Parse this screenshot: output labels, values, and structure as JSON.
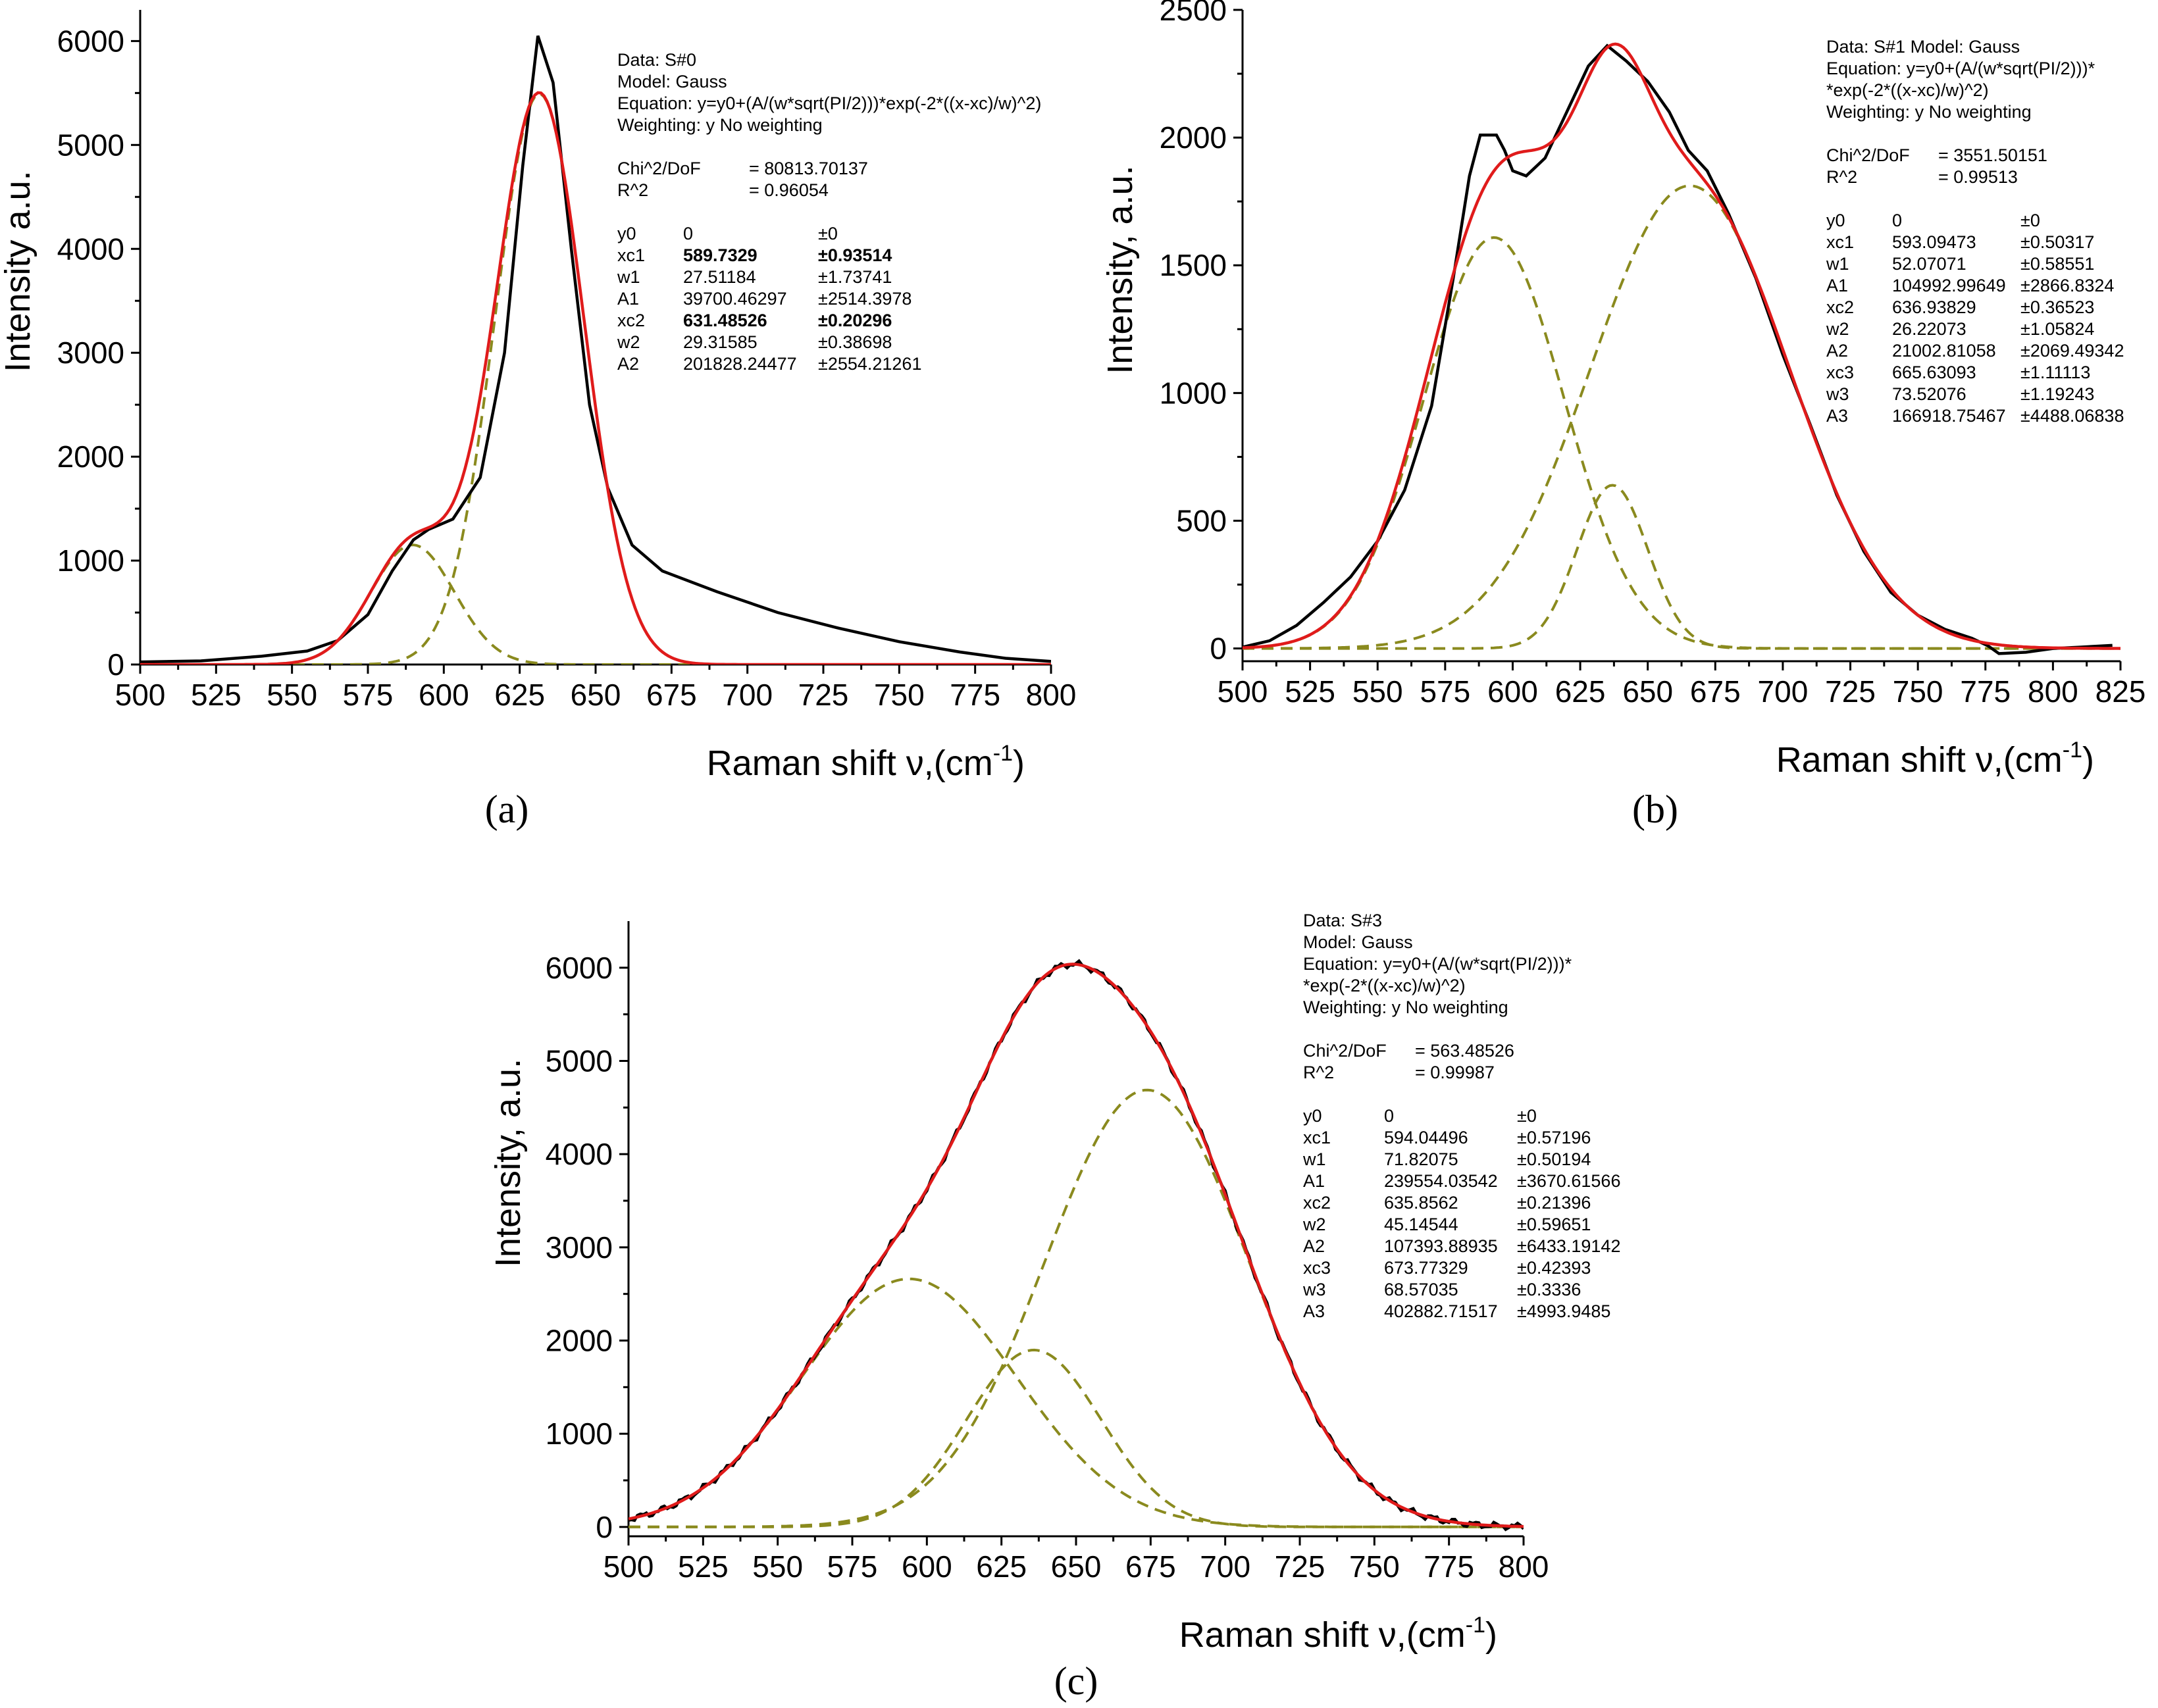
{
  "chart_data": [
    {
      "panel": "(a)",
      "type": "line",
      "xlabel": "Raman shift ν,(cm",
      "xlabel_sup": "-1",
      "xlabel_close": ")",
      "ylabel": "Intensity a.u.",
      "xlim": [
        500,
        800
      ],
      "ylim": [
        0,
        6300
      ],
      "xticks": [
        "500",
        "525",
        "550",
        "575",
        "600",
        "625",
        "650",
        "675",
        "700",
        "725",
        "750",
        "775",
        "800"
      ],
      "yticks": [
        "0",
        "1000",
        "2000",
        "3000",
        "4000",
        "5000",
        "6000"
      ],
      "fit": {
        "y0": 0,
        "peaks": [
          {
            "xc": 589.7329,
            "w": 27.51184,
            "A": 39700.46297
          },
          {
            "xc": 631.48526,
            "w": 29.31585,
            "A": 201828.24477
          }
        ]
      },
      "experimental": [
        [
          500,
          25
        ],
        [
          520,
          35
        ],
        [
          540,
          80
        ],
        [
          555,
          130
        ],
        [
          565,
          230
        ],
        [
          575,
          480
        ],
        [
          583,
          900
        ],
        [
          590,
          1200
        ],
        [
          595,
          1300
        ],
        [
          603,
          1400
        ],
        [
          612,
          1800
        ],
        [
          620,
          3000
        ],
        [
          626,
          4800
        ],
        [
          631,
          6050
        ],
        [
          636,
          5600
        ],
        [
          642,
          4000
        ],
        [
          648,
          2500
        ],
        [
          654,
          1700
        ],
        [
          662,
          1150
        ],
        [
          672,
          900
        ],
        [
          690,
          700
        ],
        [
          710,
          500
        ],
        [
          730,
          350
        ],
        [
          750,
          220
        ],
        [
          770,
          120
        ],
        [
          785,
          60
        ],
        [
          800,
          30
        ]
      ],
      "info": {
        "rows": [
          [
            "Data: S#0"
          ],
          [
            "Model: Gauss"
          ],
          [
            "Equation: y=y0+(A/(w*sqrt(PI/2)))*exp(-2*((x-xc)/w)^2)"
          ],
          [
            "Weighting:   y     No weighting"
          ],
          [
            ""
          ],
          [
            "Chi^2/DoF",
            "= 80813.70137"
          ],
          [
            "R^2",
            "=  0.96054"
          ],
          [
            ""
          ],
          [
            "y0",
            "0",
            "±0"
          ],
          [
            "xc1",
            "589.7329",
            "±0.93514"
          ],
          [
            "w1",
            "27.51184",
            "±1.73741"
          ],
          [
            "A1",
            "39700.46297",
            "±2514.3978"
          ],
          [
            "xc2",
            "631.48526",
            "±0.20296"
          ],
          [
            "w2",
            "29.31585",
            "±0.38698"
          ],
          [
            "A2",
            "201828.24477",
            "±2554.21261"
          ]
        ]
      }
    },
    {
      "panel": "(b)",
      "type": "line",
      "xlabel": "Raman shift ν,(cm",
      "xlabel_sup": "-1",
      "xlabel_close": ")",
      "ylabel": "Intensity, a.u.",
      "xlim": [
        500,
        825
      ],
      "ylim": [
        -50,
        2500
      ],
      "xticks": [
        "500",
        "525",
        "550",
        "575",
        "600",
        "625",
        "650",
        "675",
        "700",
        "725",
        "750",
        "775",
        "800",
        "825"
      ],
      "yticks": [
        "0",
        "500",
        "1000",
        "1500",
        "2000",
        "2500"
      ],
      "fit": {
        "y0": 0,
        "peaks": [
          {
            "xc": 593.09473,
            "w": 52.07071,
            "A": 104992.99649
          },
          {
            "xc": 636.93829,
            "w": 26.22073,
            "A": 21002.81058
          },
          {
            "xc": 665.63093,
            "w": 73.52076,
            "A": 166918.75467
          }
        ]
      },
      "experimental": [
        [
          500,
          5
        ],
        [
          510,
          30
        ],
        [
          520,
          90
        ],
        [
          530,
          180
        ],
        [
          540,
          280
        ],
        [
          550,
          420
        ],
        [
          560,
          620
        ],
        [
          570,
          950
        ],
        [
          578,
          1450
        ],
        [
          584,
          1850
        ],
        [
          588,
          2010
        ],
        [
          594,
          2010
        ],
        [
          597,
          1950
        ],
        [
          600,
          1870
        ],
        [
          605,
          1850
        ],
        [
          612,
          1920
        ],
        [
          620,
          2100
        ],
        [
          628,
          2280
        ],
        [
          635,
          2360
        ],
        [
          642,
          2300
        ],
        [
          650,
          2220
        ],
        [
          658,
          2100
        ],
        [
          665,
          1950
        ],
        [
          672,
          1870
        ],
        [
          680,
          1700
        ],
        [
          690,
          1450
        ],
        [
          700,
          1150
        ],
        [
          710,
          880
        ],
        [
          720,
          600
        ],
        [
          730,
          380
        ],
        [
          740,
          220
        ],
        [
          750,
          130
        ],
        [
          760,
          75
        ],
        [
          770,
          40
        ],
        [
          776,
          10
        ],
        [
          780,
          -20
        ],
        [
          790,
          -15
        ],
        [
          800,
          0
        ],
        [
          810,
          5
        ],
        [
          822,
          12
        ]
      ],
      "info": {
        "rows": [
          [
            "Data: S#1   Model: Gauss"
          ],
          [
            "Equation: y=y0+(A/(w*sqrt(PI/2)))*"
          ],
          [
            "        *exp(-2*((x-xc)/w)^2)"
          ],
          [
            "Weighting: y       No weighting"
          ],
          [
            ""
          ],
          [
            "Chi^2/DoF",
            "= 3551.50151"
          ],
          [
            "R^2",
            "=  0.99513"
          ],
          [
            ""
          ],
          [
            "y0",
            "0",
            "±0"
          ],
          [
            "xc1",
            "593.09473",
            "±0.50317"
          ],
          [
            "w1",
            "52.07071",
            "±0.58551"
          ],
          [
            "A1",
            "104992.99649",
            "±2866.8324"
          ],
          [
            "xc2",
            "636.93829",
            "±0.36523"
          ],
          [
            "w2",
            "26.22073",
            "±1.05824"
          ],
          [
            "A2",
            "21002.81058",
            "±2069.49342"
          ],
          [
            "xc3",
            "665.63093",
            "±1.11113"
          ],
          [
            "w3",
            "73.52076",
            "±1.19243"
          ],
          [
            "A3",
            "166918.75467",
            "±4488.06838"
          ]
        ]
      }
    },
    {
      "panel": "(c)",
      "type": "line",
      "xlabel": "Raman shift ν,(cm",
      "xlabel_sup": "-1",
      "xlabel_close": ")",
      "ylabel": "Intensity, a.u.",
      "xlim": [
        500,
        800
      ],
      "ylim": [
        -100,
        6500
      ],
      "xticks": [
        "500",
        "525",
        "550",
        "575",
        "600",
        "625",
        "650",
        "675",
        "700",
        "725",
        "750",
        "775",
        "800"
      ],
      "yticks": [
        "0",
        "1000",
        "2000",
        "3000",
        "4000",
        "5000",
        "6000"
      ],
      "fit": {
        "y0": 0,
        "peaks": [
          {
            "xc": 594.04496,
            "w": 71.82075,
            "A": 239554.03542
          },
          {
            "xc": 635.8562,
            "w": 45.14544,
            "A": 107393.88935
          },
          {
            "xc": 673.77329,
            "w": 68.57035,
            "A": 402882.71517
          }
        ]
      },
      "experimental": null,
      "info": {
        "rows": [
          [
            "Data: S#3"
          ],
          [
            "Model: Gauss"
          ],
          [
            "Equation: y=y0+(A/(w*sqrt(PI/2)))*"
          ],
          [
            "        *exp(-2*((x-xc)/w)^2)"
          ],
          [
            "Weighting: y   No weighting"
          ],
          [
            ""
          ],
          [
            "Chi^2/DoF",
            "= 563.48526"
          ],
          [
            "R^2",
            "=  0.99987"
          ],
          [
            ""
          ],
          [
            "y0",
            "0",
            "±0"
          ],
          [
            "xc1",
            "594.04496",
            "±0.57196"
          ],
          [
            "w1",
            "71.82075",
            "±0.50194"
          ],
          [
            "A1",
            "239554.03542",
            "±3670.61566"
          ],
          [
            "xc2",
            "635.8562",
            "±0.21396"
          ],
          [
            "w2",
            "45.14544",
            "±0.59651"
          ],
          [
            "A2",
            "107393.88935",
            "±6433.19142"
          ],
          [
            "xc3",
            "673.77329",
            "±0.42393"
          ],
          [
            "w3",
            "68.57035",
            "±0.3336"
          ],
          [
            "A3",
            "402882.71517",
            "±4993.9485"
          ]
        ]
      }
    }
  ]
}
